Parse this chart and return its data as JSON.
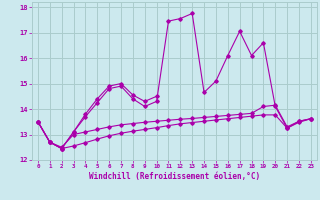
{
  "bg_color": "#cce9ee",
  "grid_color": "#aacccc",
  "line_color": "#aa00aa",
  "xlim": [
    -0.5,
    23.5
  ],
  "ylim": [
    12,
    18.2
  ],
  "yticks": [
    12,
    13,
    14,
    15,
    16,
    17,
    18
  ],
  "xticks": [
    0,
    1,
    2,
    3,
    4,
    5,
    6,
    7,
    8,
    9,
    10,
    11,
    12,
    13,
    14,
    15,
    16,
    17,
    18,
    19,
    20,
    21,
    22,
    23
  ],
  "xlabel": "Windchill (Refroidissement éolien,°C)",
  "series": [
    [
      13.5,
      12.7,
      12.45,
      13.1,
      13.7,
      14.25,
      14.8,
      14.9,
      14.4,
      14.1,
      14.3,
      17.45,
      17.55,
      17.75,
      14.65,
      15.1,
      16.1,
      17.05,
      16.1,
      16.6,
      14.1,
      13.25,
      13.52,
      13.62
    ],
    [
      13.5,
      12.7,
      12.45,
      13.1,
      13.8,
      14.4,
      14.9,
      15.0,
      14.55,
      14.3,
      14.5,
      null,
      null,
      null,
      null,
      null,
      null,
      null,
      null,
      null,
      null,
      null,
      null,
      null
    ],
    [
      13.5,
      12.7,
      12.5,
      13.0,
      13.1,
      13.2,
      13.3,
      13.38,
      13.43,
      13.48,
      13.52,
      13.56,
      13.6,
      13.63,
      13.67,
      13.71,
      13.75,
      13.79,
      13.83,
      14.1,
      14.15,
      13.3,
      13.52,
      13.62
    ],
    [
      13.5,
      12.7,
      12.45,
      12.55,
      12.68,
      12.82,
      12.95,
      13.05,
      13.13,
      13.2,
      13.27,
      13.35,
      13.42,
      13.47,
      13.52,
      13.57,
      13.62,
      13.67,
      13.72,
      13.77,
      13.77,
      13.25,
      13.48,
      13.62
    ]
  ]
}
